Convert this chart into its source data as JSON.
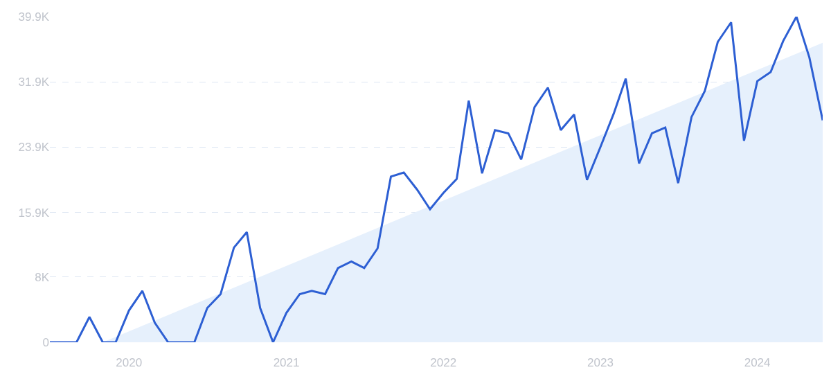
{
  "chart_data": {
    "type": "line",
    "x": [
      "2019-07",
      "2019-08",
      "2019-09",
      "2019-10",
      "2019-11",
      "2019-12",
      "2020-01",
      "2020-02",
      "2020-03",
      "2020-04",
      "2020-05",
      "2020-06",
      "2020-07",
      "2020-08",
      "2020-09",
      "2020-10",
      "2020-11",
      "2020-12",
      "2021-01",
      "2021-02",
      "2021-03",
      "2021-04",
      "2021-05",
      "2021-06",
      "2021-07",
      "2021-08",
      "2021-09",
      "2021-10",
      "2021-11",
      "2021-12",
      "2022-01",
      "2022-02",
      "2022-03",
      "2022-04",
      "2022-05",
      "2022-06",
      "2022-07",
      "2022-08",
      "2022-09",
      "2022-10",
      "2022-11",
      "2022-12",
      "2023-01",
      "2023-02",
      "2023-03",
      "2023-04",
      "2023-05",
      "2023-06",
      "2023-07",
      "2023-08",
      "2023-09",
      "2023-10",
      "2023-11",
      "2023-12",
      "2024-01",
      "2024-02",
      "2024-03",
      "2024-04",
      "2024-05",
      "2024-06"
    ],
    "series": [
      {
        "color": "#2d5fd3",
        "values": [
          0,
          0,
          0,
          3100,
          0,
          0,
          3900,
          6300,
          2400,
          0,
          0,
          0,
          4200,
          5900,
          11600,
          13500,
          4200,
          0,
          3600,
          5900,
          6300,
          5900,
          9100,
          9900,
          9100,
          11500,
          20300,
          20800,
          18700,
          16300,
          18300,
          20000,
          29600,
          20700,
          26000,
          25600,
          22400,
          28800,
          31200,
          26000,
          27900,
          19900,
          23900,
          28000,
          32300,
          21900,
          25600,
          26300,
          19500,
          27600,
          30800,
          36800,
          39200,
          24700,
          32000,
          33100,
          36900,
          39900,
          34900,
          27200
        ]
      },
      {
        "type": "area",
        "color": "#e6f0fc",
        "x": [
          "2019-11",
          "2024-06"
        ],
        "values": [
          0,
          36700
        ]
      }
    ],
    "xlim": [
      "2019-07",
      "2024-06"
    ],
    "xticks": [
      {
        "value": "2020-01",
        "label": "2020"
      },
      {
        "value": "2021-01",
        "label": "2021"
      },
      {
        "value": "2022-01",
        "label": "2022"
      },
      {
        "value": "2023-01",
        "label": "2023"
      },
      {
        "value": "2024-01",
        "label": "2024"
      }
    ],
    "ylim": [
      0,
      39900
    ],
    "yticks": [
      0,
      {
        "value": 8000,
        "label": "8K"
      },
      {
        "value": 15900,
        "label": "15.9K"
      },
      {
        "value": 23900,
        "label": "23.9K"
      },
      {
        "value": 31900,
        "label": "31.9K"
      },
      {
        "value": 39900,
        "label": "39.9K"
      }
    ],
    "grid": "y",
    "marker": "none",
    "line_style": "solid"
  }
}
